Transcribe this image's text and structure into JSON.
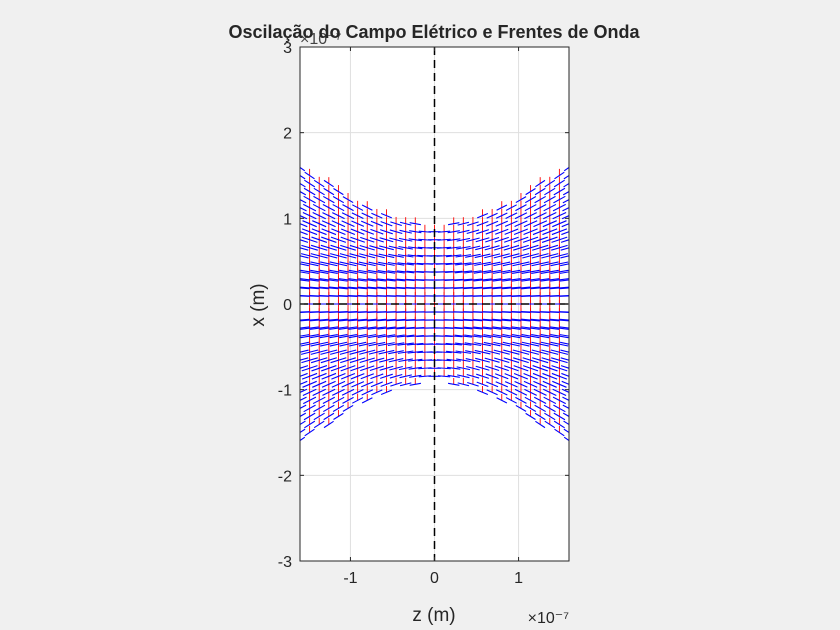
{
  "chart_data": {
    "type": "quiver",
    "title": "Oscilação do Campo Elétrico e Frentes de Onda",
    "xlabel": "z (m)",
    "ylabel": "x (m)",
    "x_exponent": "×10⁻⁷",
    "y_exponent": "×10⁻⁷",
    "xlim": [
      -1.6e-07,
      1.6e-07
    ],
    "ylim": [
      -3e-07,
      3e-07
    ],
    "x_ticks": [
      -1e-07,
      0,
      1e-07
    ],
    "x_tick_labels": [
      "-1",
      "0",
      "1"
    ],
    "y_ticks": [
      -3e-07,
      -2e-07,
      -1e-07,
      0,
      1e-07,
      2e-07,
      3e-07
    ],
    "y_tick_labels": [
      "-3",
      "-2",
      "-1",
      "0",
      "1",
      "2",
      "3"
    ],
    "grid": true,
    "beam": {
      "waist_w0": 9.2e-08,
      "rayleigh_range": 1.07e-07,
      "description_boundary": "field shown inside |x| < w(z)"
    },
    "reference_lines": [
      {
        "orientation": "vertical",
        "value": 0,
        "style": "dashed"
      },
      {
        "orientation": "horizontal",
        "value": 0,
        "style": "dashed"
      }
    ],
    "series": [
      {
        "role": "electric field",
        "color": "#ff0000"
      },
      {
        "role": "wave fronts",
        "color": "#0000ff"
      }
    ]
  }
}
